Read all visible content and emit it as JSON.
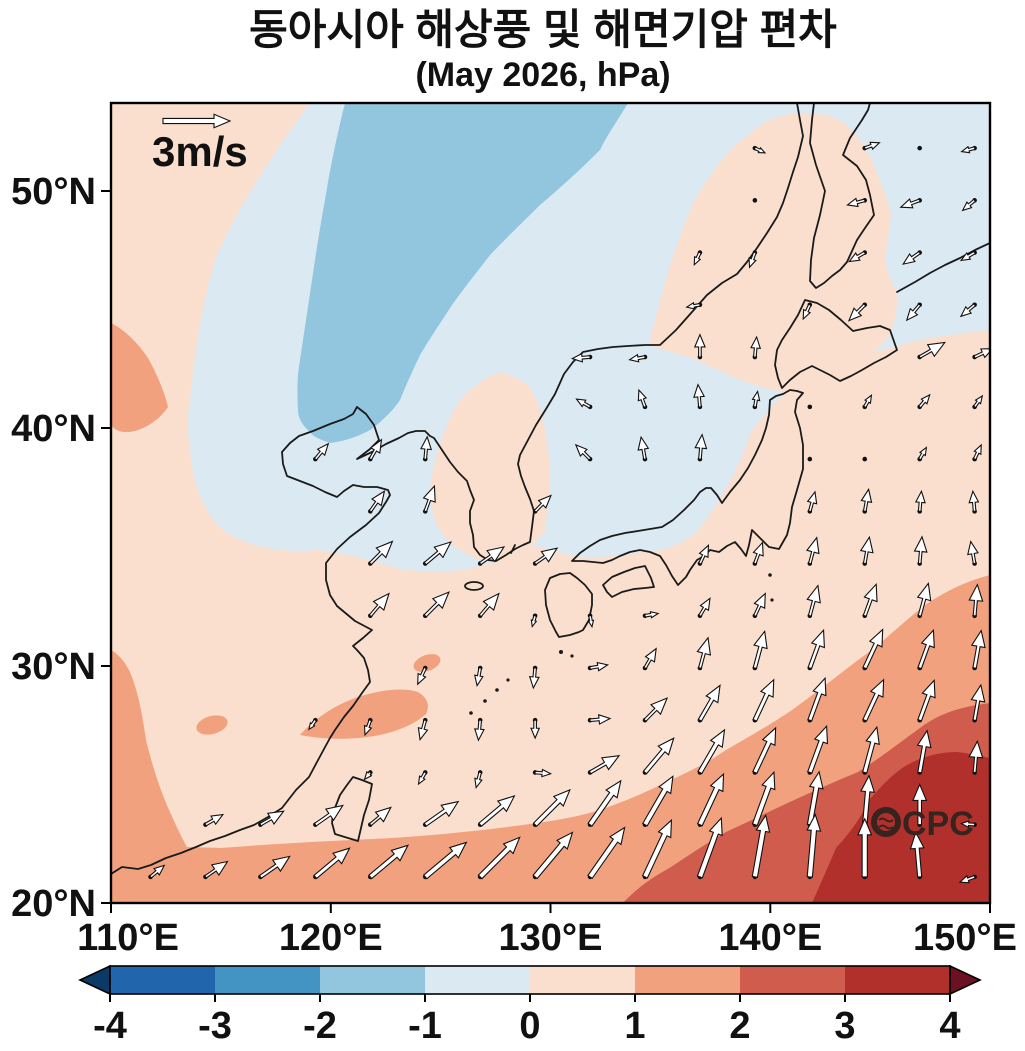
{
  "title": {
    "line1": "동아시아 해상풍 및 해면기압 편차",
    "line2": "(May 2026, hPa)"
  },
  "map": {
    "x_axis": {
      "tick_labels": [
        "110°E",
        "120°E",
        "130°E",
        "140°E",
        "150°E"
      ],
      "tick_values": [
        110,
        120,
        130,
        140,
        150
      ]
    },
    "y_axis": {
      "tick_labels": [
        "20°N",
        "30°N",
        "40°N",
        "50°N"
      ],
      "tick_values": [
        20,
        30,
        40,
        50
      ]
    },
    "lon_range": [
      110,
      150
    ],
    "lat_range": [
      20,
      53.7
    ],
    "reference_arrow": {
      "label": "3m/s",
      "speed_ms": 3
    },
    "watermark": "OCPC"
  },
  "colorbar": {
    "units": "hPa",
    "tick_labels": [
      "-4",
      "-3",
      "-2",
      "-1",
      "0",
      "1",
      "2",
      "3",
      "4"
    ],
    "band_colors": [
      "#2166ac",
      "#4393c3",
      "#92c5de",
      "#dbe9f3",
      "#fbdfce",
      "#f2a17f",
      "#cf5c4c",
      "#b1302c"
    ],
    "under_color": "#0b3a67",
    "over_color": "#6d1021"
  },
  "chart_data": {
    "type": "heatmap",
    "title": "동아시아 해상풍 및 해면기압 편차 (May 2026, hPa)",
    "xlabel_ticks": [
      110,
      120,
      130,
      140,
      150
    ],
    "ylabel_ticks": [
      20,
      30,
      40,
      50
    ],
    "shading_variable": "sea level pressure anomaly (hPa)",
    "vector_variable": "surface wind anomaly (m/s)",
    "contour_levels": [
      -4,
      -3,
      -2,
      -1,
      0,
      1,
      2,
      3,
      4
    ],
    "pressure_bands": [
      {
        "level": "-2 to -1",
        "color": "#92c5de",
        "region": "NE-SW elongated band over northeast China/Amur from ~120-133E at 54N tapering to ~119-121E at 40N"
      },
      {
        "level": "-1 to 0",
        "color": "#dbe9f3",
        "region": "broad north/northwest area, Sea of Japan, Sea of Okhotsk and northeast corner, down to ~34N over the Yellow Sea"
      },
      {
        "level": "0 to 1",
        "color": "#fbdfce",
        "region": "Japan, Korea tongue, Sakhalin-Hokkaido blob, western edge band 110-113E, central East China Sea"
      },
      {
        "level": "1 to 2",
        "color": "#f2a17f",
        "region": "southern band south of ~22N rising to ~34N at 150E; patches near Zhejiang coast 121-124E/27-29N, 114.5E/27.5N, and west edge 110-112.5E/40-44N"
      },
      {
        "level": "2 to 3",
        "color": "#cf5c4c",
        "region": "southeast quadrant from ~133E at 20N up to ~150E at 28.5N"
      },
      {
        "level": "3 to 4",
        "color": "#b1302c",
        "region": "far southeast corner 141-150E south of ~26N, maximum near 146E/23N"
      }
    ],
    "wind_vectors": {
      "format": [
        "lon_E",
        "lat_N",
        "direction_deg_pointing",
        "speed_ms"
      ],
      "reference_speed_ms": 3,
      "points": [
        [
          139.3,
          51.8,
          115,
          0.5
        ],
        [
          144.3,
          51.8,
          70,
          0.7
        ],
        [
          146.8,
          51.8,
          0,
          0
        ],
        [
          149.3,
          51.8,
          255,
          0.6
        ],
        [
          139.3,
          49.6,
          0,
          0
        ],
        [
          144.3,
          49.6,
          255,
          0.8
        ],
        [
          146.8,
          49.6,
          250,
          0.9
        ],
        [
          149.3,
          49.6,
          230,
          0.7
        ],
        [
          136.8,
          47.4,
          205,
          0.6
        ],
        [
          139.3,
          47.4,
          200,
          0.7
        ],
        [
          144.3,
          47.4,
          240,
          0.8
        ],
        [
          146.8,
          47.4,
          235,
          0.9
        ],
        [
          149.3,
          47.4,
          240,
          0.7
        ],
        [
          136.8,
          45.2,
          260,
          0.6
        ],
        [
          141.8,
          45.2,
          205,
          0.7
        ],
        [
          144.3,
          45.2,
          225,
          1.0
        ],
        [
          146.8,
          45.2,
          220,
          0.9
        ],
        [
          149.3,
          45.2,
          230,
          0.8
        ],
        [
          131.8,
          43,
          265,
          0.8
        ],
        [
          134.3,
          43,
          260,
          0.7
        ],
        [
          136.8,
          43,
          0,
          1.0
        ],
        [
          139.3,
          43,
          5,
          0.9
        ],
        [
          146.8,
          43,
          60,
          1.3
        ],
        [
          149.3,
          43,
          65,
          0.9
        ],
        [
          131.8,
          40.9,
          300,
          0.7
        ],
        [
          134.3,
          40.9,
          340,
          0.8
        ],
        [
          136.8,
          40.9,
          355,
          1.0
        ],
        [
          139.3,
          40.9,
          10,
          0.7
        ],
        [
          141.8,
          40.9,
          0,
          0
        ],
        [
          144.3,
          40.9,
          30,
          0.6
        ],
        [
          146.8,
          40.9,
          40,
          0.7
        ],
        [
          149.3,
          40.9,
          35,
          0.6
        ],
        [
          119.3,
          38.7,
          40,
          0.9
        ],
        [
          121.8,
          38.7,
          30,
          1.0
        ],
        [
          124.3,
          38.7,
          5,
          1.0
        ],
        [
          131.8,
          38.7,
          315,
          0.9
        ],
        [
          134.3,
          38.7,
          350,
          1.0
        ],
        [
          136.8,
          38.7,
          5,
          1.1
        ],
        [
          141.8,
          38.7,
          0,
          0
        ],
        [
          144.3,
          38.7,
          0,
          0
        ],
        [
          146.8,
          38.7,
          30,
          0.6
        ],
        [
          149.3,
          38.7,
          25,
          0.7
        ],
        [
          121.8,
          36.5,
          35,
          1.1
        ],
        [
          124.3,
          36.5,
          20,
          1.2
        ],
        [
          129.3,
          36.5,
          45,
          1.0
        ],
        [
          141.8,
          36.5,
          15,
          0.9
        ],
        [
          144.3,
          36.5,
          10,
          1.0
        ],
        [
          146.8,
          36.5,
          5,
          0.9
        ],
        [
          149.3,
          36.5,
          355,
          0.9
        ],
        [
          121.8,
          34.3,
          45,
          1.4
        ],
        [
          124.3,
          34.3,
          50,
          1.5
        ],
        [
          126.8,
          34.3,
          55,
          1.3
        ],
        [
          129.3,
          34.3,
          55,
          1.2
        ],
        [
          136.8,
          34.3,
          25,
          0.9
        ],
        [
          139.3,
          34.3,
          20,
          1.0
        ],
        [
          141.8,
          34.3,
          15,
          1.2
        ],
        [
          144.3,
          34.3,
          10,
          1.2
        ],
        [
          146.8,
          34.3,
          5,
          1.2
        ],
        [
          149.3,
          34.3,
          350,
          1.0
        ],
        [
          121.8,
          32.1,
          40,
          1.3
        ],
        [
          124.3,
          32.1,
          45,
          1.5
        ],
        [
          126.8,
          32.1,
          40,
          1.3
        ],
        [
          129.3,
          32.1,
          195,
          0.5
        ],
        [
          131.8,
          32.1,
          170,
          0.5
        ],
        [
          134.3,
          32.1,
          80,
          0.6
        ],
        [
          136.8,
          32.1,
          30,
          0.9
        ],
        [
          139.3,
          32.1,
          25,
          1.1
        ],
        [
          141.8,
          32.1,
          15,
          1.4
        ],
        [
          144.3,
          32.1,
          20,
          1.5
        ],
        [
          146.8,
          32.1,
          15,
          1.5
        ],
        [
          149.3,
          32.1,
          5,
          1.4
        ],
        [
          124.3,
          29.9,
          205,
          0.8
        ],
        [
          126.8,
          29.9,
          190,
          0.8
        ],
        [
          129.3,
          29.9,
          185,
          0.9
        ],
        [
          131.8,
          29.9,
          80,
          0.8
        ],
        [
          134.3,
          29.9,
          30,
          1.0
        ],
        [
          136.8,
          29.9,
          15,
          1.4
        ],
        [
          139.3,
          29.9,
          15,
          1.7
        ],
        [
          141.8,
          29.9,
          20,
          1.8
        ],
        [
          144.3,
          29.9,
          25,
          1.9
        ],
        [
          146.8,
          29.9,
          20,
          1.8
        ],
        [
          149.3,
          29.9,
          10,
          1.7
        ],
        [
          119.3,
          27.7,
          215,
          0.5
        ],
        [
          121.8,
          27.7,
          200,
          0.7
        ],
        [
          124.3,
          27.7,
          195,
          0.9
        ],
        [
          126.8,
          27.7,
          185,
          0.9
        ],
        [
          129.3,
          27.7,
          180,
          0.8
        ],
        [
          131.8,
          27.7,
          85,
          0.9
        ],
        [
          134.3,
          27.7,
          45,
          1.4
        ],
        [
          136.8,
          27.7,
          30,
          1.8
        ],
        [
          139.3,
          27.7,
          25,
          2.0
        ],
        [
          141.8,
          27.7,
          20,
          2.0
        ],
        [
          144.3,
          27.7,
          25,
          2.0
        ],
        [
          146.8,
          27.7,
          20,
          1.9
        ],
        [
          149.3,
          27.7,
          10,
          1.6
        ],
        [
          121.8,
          25.5,
          220,
          0.4
        ],
        [
          124.3,
          25.5,
          210,
          0.6
        ],
        [
          126.8,
          25.5,
          195,
          0.7
        ],
        [
          129.3,
          25.5,
          95,
          0.7
        ],
        [
          131.8,
          25.5,
          60,
          1.5
        ],
        [
          134.3,
          25.5,
          40,
          2.0
        ],
        [
          136.8,
          25.5,
          30,
          2.2
        ],
        [
          139.3,
          25.5,
          25,
          2.2
        ],
        [
          141.8,
          25.5,
          20,
          2.2
        ],
        [
          144.3,
          25.5,
          15,
          2.1
        ],
        [
          146.8,
          25.5,
          10,
          1.9
        ],
        [
          149.3,
          25.5,
          5,
          1.4
        ],
        [
          114.3,
          23.3,
          60,
          0.9
        ],
        [
          116.8,
          23.3,
          60,
          1.2
        ],
        [
          119.3,
          23.3,
          55,
          1.5
        ],
        [
          121.8,
          23.3,
          50,
          1.2
        ],
        [
          124.3,
          23.3,
          55,
          1.8
        ],
        [
          126.8,
          23.3,
          50,
          2.0
        ],
        [
          129.3,
          23.3,
          45,
          2.2
        ],
        [
          131.8,
          23.3,
          35,
          2.4
        ],
        [
          134.3,
          23.3,
          30,
          2.5
        ],
        [
          136.8,
          23.3,
          25,
          2.5
        ],
        [
          139.3,
          23.3,
          20,
          2.5
        ],
        [
          141.8,
          23.3,
          10,
          2.4
        ],
        [
          144.3,
          23.3,
          5,
          2.2
        ],
        [
          146.8,
          23.3,
          0,
          1.8
        ],
        [
          149.3,
          23.3,
          275,
          0.6
        ],
        [
          111.8,
          21.1,
          50,
          0.8
        ],
        [
          114.3,
          21.1,
          55,
          1.2
        ],
        [
          116.8,
          21.1,
          55,
          1.6
        ],
        [
          119.3,
          21.1,
          50,
          2.0
        ],
        [
          121.8,
          21.1,
          50,
          2.2
        ],
        [
          124.3,
          21.1,
          50,
          2.4
        ],
        [
          126.8,
          21.1,
          45,
          2.5
        ],
        [
          129.3,
          21.1,
          40,
          2.6
        ],
        [
          131.8,
          21.1,
          35,
          2.7
        ],
        [
          134.3,
          21.1,
          25,
          2.8
        ],
        [
          136.8,
          21.1,
          20,
          2.8
        ],
        [
          139.3,
          21.1,
          10,
          2.8
        ],
        [
          141.8,
          21.1,
          5,
          2.8
        ],
        [
          144.3,
          21.1,
          0,
          2.6
        ],
        [
          146.8,
          21.1,
          355,
          2.0
        ],
        [
          149.3,
          21.1,
          250,
          0.7
        ]
      ]
    }
  }
}
